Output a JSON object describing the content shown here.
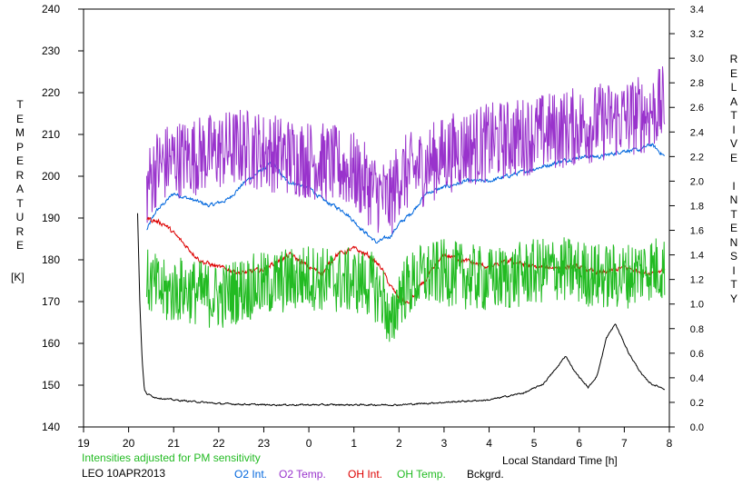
{
  "chart_data": {
    "type": "line",
    "xlabel": "Local Standard Time [h]",
    "x_ticks": [
      "19",
      "20",
      "21",
      "22",
      "23",
      "0",
      "1",
      "2",
      "3",
      "4",
      "5",
      "6",
      "7",
      "8"
    ],
    "xlim": [
      19,
      32
    ],
    "left_axis": {
      "label_letters": [
        "T",
        "E",
        "M",
        "P",
        "E",
        "R",
        "A",
        "T",
        "U",
        "R",
        "E"
      ],
      "unit": "[K]",
      "ticks": [
        "140",
        "150",
        "160",
        "170",
        "180",
        "190",
        "200",
        "210",
        "220",
        "230",
        "240"
      ],
      "ylim": [
        140,
        240
      ]
    },
    "right_axis": {
      "label_letters_1": [
        "R",
        "E",
        "L",
        "A",
        "T",
        "I",
        "V",
        "E"
      ],
      "label_letters_2": [
        "I",
        "N",
        "T",
        "E",
        "N",
        "S",
        "I",
        "T",
        "Y"
      ],
      "ticks": [
        "0.0",
        "0.2",
        "0.4",
        "0.6",
        "0.8",
        "1.0",
        "1.2",
        "1.4",
        "1.6",
        "1.8",
        "2.0",
        "2.2",
        "2.4",
        "2.6",
        "2.8",
        "3.0",
        "3.2",
        "3.4"
      ],
      "ylim": [
        0,
        3.4
      ]
    },
    "series": [
      {
        "name": "O2 Int.",
        "axis": "right",
        "color": "#0066dd",
        "noise": 0.02,
        "x": [
          20.4,
          20.6,
          21.0,
          21.4,
          21.8,
          22.2,
          22.6,
          23.0,
          23.2,
          23.5,
          24.0,
          24.3,
          24.8,
          25.2,
          25.5,
          25.8,
          26.0,
          26.3,
          26.6,
          27.0,
          27.5,
          28.0,
          28.5,
          29.0,
          29.5,
          30.0,
          30.5,
          31.0,
          31.3,
          31.6,
          31.9
        ],
        "y": [
          1.6,
          1.75,
          1.9,
          1.85,
          1.8,
          1.85,
          2.0,
          2.1,
          2.15,
          2.0,
          1.95,
          1.85,
          1.75,
          1.6,
          1.5,
          1.55,
          1.65,
          1.75,
          1.9,
          1.95,
          2.0,
          2.0,
          2.05,
          2.1,
          2.15,
          2.2,
          2.2,
          2.25,
          2.25,
          2.3,
          2.2
        ]
      },
      {
        "name": "O2 Temp.",
        "axis": "left",
        "color": "#9933cc",
        "noise": 6,
        "x": [
          20.4,
          20.6,
          21.0,
          21.5,
          22.0,
          22.5,
          23.0,
          23.5,
          24.0,
          24.5,
          25.0,
          25.5,
          25.8,
          26.0,
          26.5,
          27.0,
          27.5,
          28.0,
          28.5,
          29.0,
          29.5,
          30.0,
          30.5,
          31.0,
          31.5,
          31.9
        ],
        "y": [
          197,
          202,
          204,
          205,
          206,
          207,
          206,
          205,
          204,
          203,
          201,
          196,
          194,
          200,
          202,
          205,
          207,
          208,
          209,
          210,
          211,
          212,
          213,
          214,
          215,
          217
        ]
      },
      {
        "name": "OH Int.",
        "axis": "right",
        "color": "#dd0000",
        "noise": 0.025,
        "x": [
          20.4,
          20.8,
          21.2,
          21.6,
          22.0,
          22.5,
          23.0,
          23.3,
          23.6,
          24.0,
          24.3,
          24.6,
          25.0,
          25.3,
          25.6,
          25.8,
          26.0,
          26.2,
          26.5,
          27.0,
          27.5,
          28.0,
          28.5,
          29.0,
          29.5,
          30.0,
          30.5,
          31.0,
          31.5,
          31.9
        ],
        "y": [
          1.7,
          1.65,
          1.5,
          1.35,
          1.3,
          1.25,
          1.28,
          1.35,
          1.4,
          1.3,
          1.25,
          1.4,
          1.45,
          1.4,
          1.3,
          1.15,
          1.05,
          1.0,
          1.15,
          1.4,
          1.35,
          1.3,
          1.35,
          1.3,
          1.3,
          1.3,
          1.25,
          1.3,
          1.25,
          1.28
        ]
      },
      {
        "name": "OH Temp.",
        "axis": "left",
        "color": "#22bb22",
        "noise": 5,
        "x": [
          20.4,
          20.8,
          21.2,
          21.6,
          22.0,
          22.5,
          23.0,
          23.5,
          24.0,
          24.5,
          25.0,
          25.4,
          25.7,
          25.8,
          26.0,
          26.5,
          27.0,
          27.5,
          28.0,
          28.5,
          29.0,
          29.5,
          30.0,
          30.5,
          31.0,
          31.5,
          31.9
        ],
        "y": [
          175,
          172,
          173,
          172,
          171,
          173,
          174,
          175,
          176,
          175,
          175,
          174,
          170,
          162,
          172,
          176,
          177,
          176,
          175,
          176,
          177,
          178,
          177,
          176,
          176,
          178,
          178
        ]
      },
      {
        "name": "Bckgrd.",
        "axis": "right",
        "color": "#000000",
        "noise": 0.008,
        "x": [
          20.2,
          20.25,
          20.3,
          20.35,
          20.4,
          20.6,
          21.0,
          22.0,
          23.0,
          24.0,
          25.0,
          26.0,
          27.0,
          28.0,
          28.8,
          29.2,
          29.5,
          29.7,
          29.9,
          30.2,
          30.4,
          30.6,
          30.8,
          31.1,
          31.4,
          31.6,
          31.9
        ],
        "y": [
          1.74,
          1.0,
          0.55,
          0.3,
          0.27,
          0.24,
          0.22,
          0.19,
          0.18,
          0.18,
          0.18,
          0.18,
          0.2,
          0.22,
          0.28,
          0.35,
          0.48,
          0.58,
          0.45,
          0.32,
          0.42,
          0.72,
          0.84,
          0.6,
          0.42,
          0.35,
          0.31
        ]
      }
    ]
  },
  "notes": {
    "sensitivity": "Intensities adjusted for PM sensitivity",
    "site_date": "LEO 10APR2013"
  }
}
